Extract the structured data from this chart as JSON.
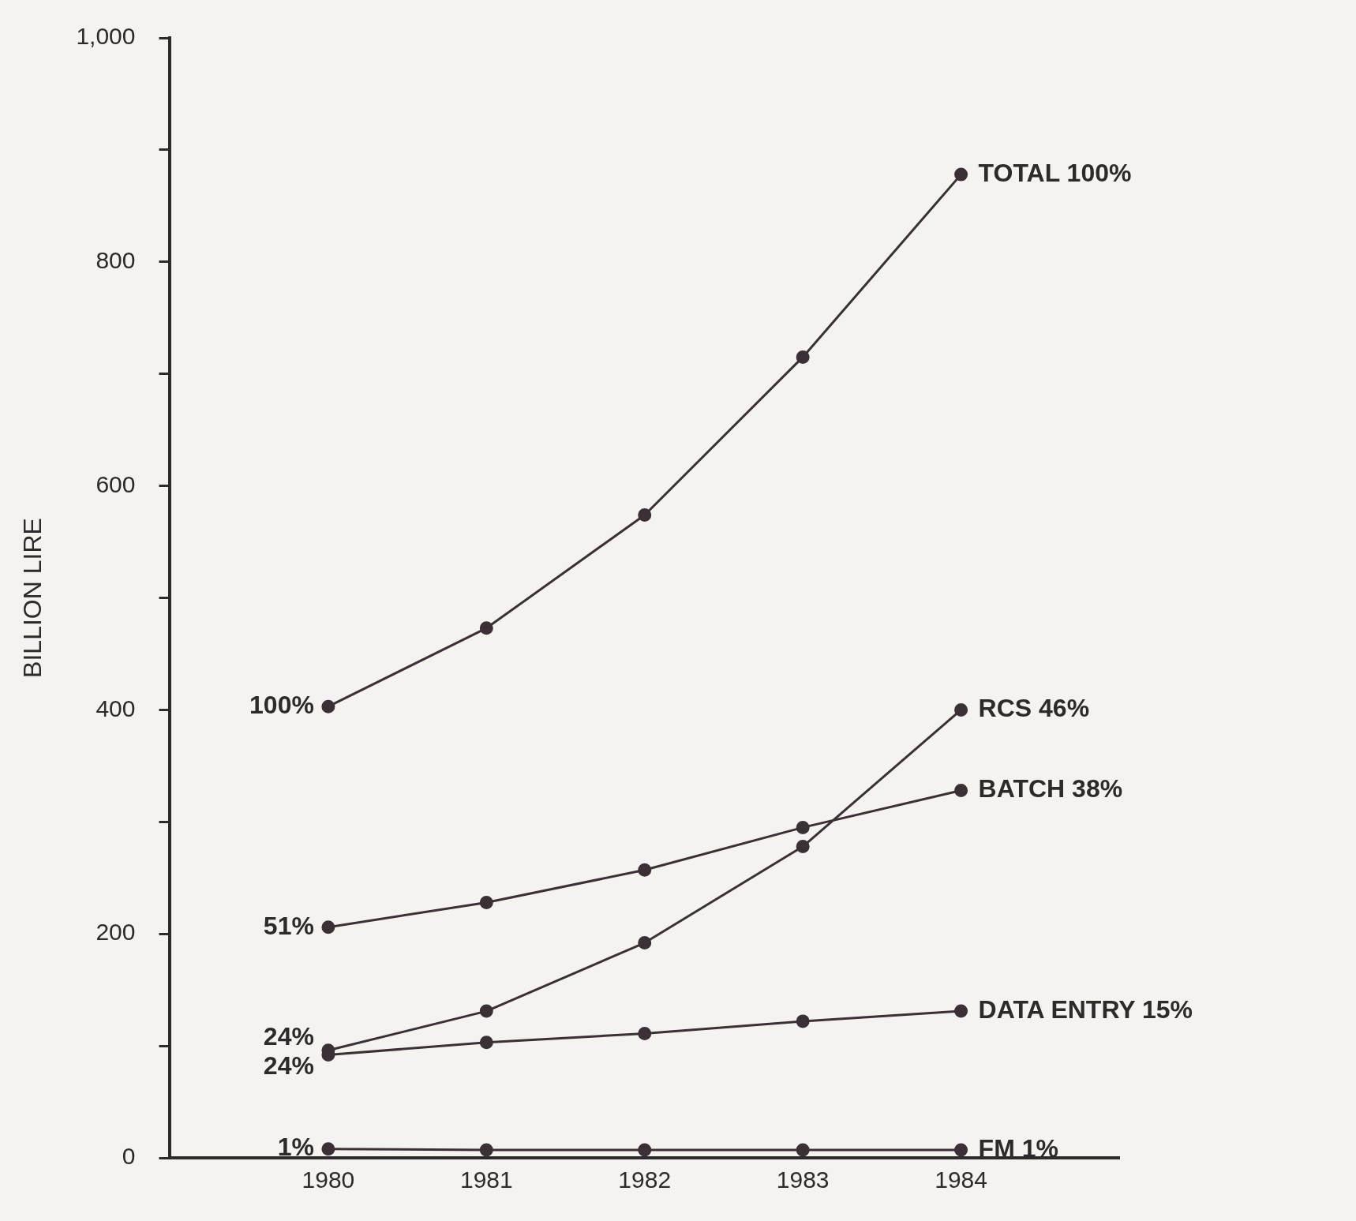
{
  "chart_data": {
    "type": "line",
    "ylabel": "BILLION LIRE",
    "categories": [
      "1980",
      "1981",
      "1982",
      "1983",
      "1984"
    ],
    "ylim": [
      0,
      1000
    ],
    "yticks": [
      0,
      {
        "value": 100,
        "label": null
      },
      200,
      {
        "value": 300,
        "label": null
      },
      400,
      {
        "value": 500,
        "label": null
      },
      600,
      {
        "value": 700,
        "label": null
      },
      800,
      {
        "value": 900,
        "label": null
      },
      {
        "value": 1000,
        "label": "1,000"
      }
    ],
    "grid": false,
    "legend": false,
    "marker": "circle",
    "line_style": "solid",
    "series": [
      {
        "name": "TOTAL 100%",
        "color": "#3a3035",
        "values": [
          403,
          473,
          574,
          715,
          878
        ]
      },
      {
        "name": "RCS 46%",
        "color": "#3a3035",
        "values": [
          96,
          131,
          192,
          278,
          400
        ]
      },
      {
        "name": "BATCH 38%",
        "color": "#3a3035",
        "values": [
          206,
          228,
          257,
          295,
          328
        ]
      },
      {
        "name": "DATA ENTRY 15%",
        "color": "#3a3035",
        "values": [
          92,
          103,
          111,
          122,
          131
        ]
      },
      {
        "name": "FM 1%",
        "color": "#3a3035",
        "values": [
          8,
          7,
          7,
          7,
          7
        ]
      }
    ],
    "annotations": [
      {
        "text": "100%",
        "x": "1980",
        "y": 403
      },
      {
        "text": "51%",
        "x": "1980",
        "y": 206
      },
      {
        "text": "24%",
        "x": "1980",
        "y": 96
      },
      {
        "text": "24%",
        "x": "1980",
        "y": 92
      },
      {
        "text": "1%",
        "x": "1980",
        "y": 8
      }
    ]
  }
}
